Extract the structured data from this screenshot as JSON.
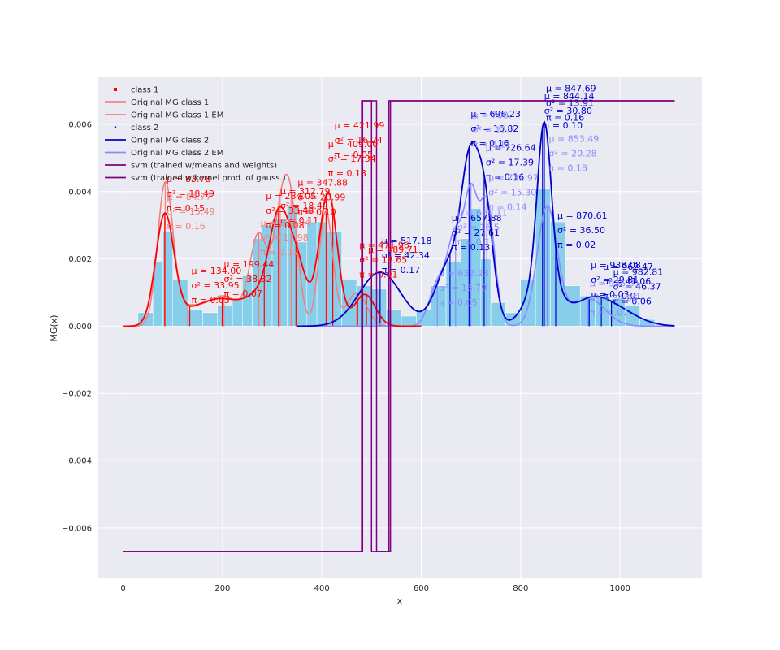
{
  "chart_data": {
    "type": "line",
    "xlabel": "x",
    "ylabel": "MG(x)",
    "xlim": [
      -50,
      1165
    ],
    "ylim": [
      -0.0075,
      0.0074
    ],
    "x_ticks": [
      0,
      200,
      400,
      600,
      800,
      1000
    ],
    "y_ticks": [
      -0.006,
      -0.004,
      -0.002,
      0.0,
      0.002,
      0.004,
      0.006
    ],
    "x_tick_labels": [
      "0",
      "200",
      "400",
      "600",
      "800",
      "1000"
    ],
    "y_tick_labels": [
      "−0.006",
      "−0.004",
      "−0.002",
      "0.000",
      "0.002",
      "0.004",
      "0.006"
    ],
    "grid": true,
    "legend_position": "top-left",
    "legend": [
      {
        "label": "class 1",
        "kind": "marker",
        "color": "#ff0000"
      },
      {
        "label": "Original MG class 1",
        "kind": "line",
        "color": "#ff0000"
      },
      {
        "label": "Original MG class 1 EM",
        "kind": "line",
        "color": "#f08080"
      },
      {
        "label": "class 2",
        "kind": "marker",
        "color": "#0000ff"
      },
      {
        "label": "Original MG class 2",
        "kind": "line",
        "color": "#0000cd"
      },
      {
        "label": "Original MG class 2 EM",
        "kind": "line",
        "color": "#8a8aff"
      },
      {
        "label": "svm (trained w/means and weights)",
        "kind": "line",
        "color": "#800080"
      },
      {
        "label": "svm (trained w/kernel prod. of gauss.)",
        "kind": "line",
        "color": "#800080"
      }
    ],
    "colors": {
      "class1": "#ff0000",
      "class1_em": "#f08080",
      "class2": "#0000cd",
      "class2_em": "#8a8aff",
      "svm": "#800080",
      "hist": "#87ceeb",
      "plot_bg": "#eaeaf2"
    },
    "histogram": {
      "bin_edges": [
        0,
        30,
        60,
        80,
        100,
        130,
        160,
        190,
        220,
        240,
        260,
        280,
        300,
        330,
        350,
        370,
        390,
        410,
        440,
        470,
        500,
        530,
        560,
        590,
        620,
        650,
        680,
        700,
        720,
        740,
        770,
        800,
        830,
        860,
        890,
        920,
        950,
        980,
        1010,
        1040,
        1070,
        1110
      ],
      "heights": [
        0.0,
        0.0004,
        0.0019,
        0.0028,
        0.0014,
        0.0005,
        0.0004,
        0.0006,
        0.0008,
        0.0015,
        0.0026,
        0.003,
        0.0032,
        0.0036,
        0.0025,
        0.0031,
        0.0031,
        0.0028,
        0.0014,
        0.0012,
        0.0011,
        0.0005,
        0.0003,
        0.0005,
        0.0012,
        0.0019,
        0.0026,
        0.0035,
        0.002,
        0.0007,
        0.0004,
        0.0014,
        0.0041,
        0.0031,
        0.0012,
        0.0009,
        0.0009,
        0.0008,
        0.0006,
        0.0002,
        0.0
      ]
    },
    "class1_components": [
      {
        "mu": 83.78,
        "sigma2": 18.49,
        "pi": 0.15
      },
      {
        "mu": 134.0,
        "sigma2": 33.95,
        "pi": 0.03
      },
      {
        "mu": 199.44,
        "sigma2": 38.32,
        "pi": 0.07
      },
      {
        "mu": 284.05,
        "sigma2": 33.48,
        "pi": 0.08
      },
      {
        "mu": 312.79,
        "sigma2": 18.49,
        "pi": 0.11
      },
      {
        "mu": 347.88,
        "sigma2": 20.99,
        "pi": 0.1
      },
      {
        "mu": 409.0,
        "sigma2": 17.34,
        "pi": 0.13
      },
      {
        "mu": 421.99,
        "sigma2": 16.24,
        "pi": 0.05
      },
      {
        "mu": 471.96,
        "sigma2": 18.65,
        "pi": 0.01
      },
      {
        "mu": 489.71,
        "sigma2": 20.0,
        "pi": 0.04
      }
    ],
    "class2_components": [
      {
        "mu": 517.18,
        "sigma2": 42.34,
        "pi": 0.17
      },
      {
        "mu": 657.88,
        "sigma2": 27.61,
        "pi": 0.13
      },
      {
        "mu": 696.23,
        "sigma2": 16.82,
        "pi": 0.16
      },
      {
        "mu": 726.64,
        "sigma2": 17.39,
        "pi": 0.16
      },
      {
        "mu": 847.69,
        "sigma2": 13.91,
        "pi": 0.16
      },
      {
        "mu": 844.14,
        "sigma2": 30.8,
        "pi": 0.1
      },
      {
        "mu": 870.61,
        "sigma2": 36.5,
        "pi": 0.02
      },
      {
        "mu": 938.08,
        "sigma2": 29.81,
        "pi": 0.03
      },
      {
        "mu": 962.47,
        "sigma2": 41.06,
        "pi": 0.01
      },
      {
        "mu": 982.81,
        "sigma2": 46.37,
        "pi": 0.06
      }
    ],
    "class1_em_components": [
      {
        "mu": 84.77,
        "sigma2": 15.49,
        "pi": 0.16
      },
      {
        "mu": 130.0,
        "sigma2": 30.0,
        "pi": 0.04
      },
      {
        "mu": 203.0,
        "sigma2": 32.0,
        "pi": 0.07
      },
      {
        "mu": 273.04,
        "sigma2": 17.98,
        "pi": 0.12
      },
      {
        "mu": 316.0,
        "sigma2": 15.0,
        "pi": 0.1
      },
      {
        "mu": 338.0,
        "sigma2": 15.0,
        "pi": 0.12
      },
      {
        "mu": 408.0,
        "sigma2": 14.0,
        "pi": 0.12
      },
      {
        "mu": 470.0,
        "sigma2": 20.0,
        "pi": 0.05
      }
    ],
    "class2_em_components": [
      {
        "mu": 632.23,
        "sigma2": 16.79,
        "pi": 0.05
      },
      {
        "mu": 669.11,
        "sigma2": 16.5,
        "pi": 0.11
      },
      {
        "mu": 700.0,
        "sigma2": 13.0,
        "pi": 0.11
      },
      {
        "mu": 731.97,
        "sigma2": 15.3,
        "pi": 0.14
      },
      {
        "mu": 853.49,
        "sigma2": 20.28,
        "pi": 0.18
      },
      {
        "mu": 935.91,
        "sigma2": 34.06,
        "pi": 0.07
      }
    ],
    "annotations": [
      {
        "x": 83.78,
        "y": 0.00428,
        "lines": [
          "μ = 83.78",
          "σ² = 18.49",
          "π = 0.15"
        ],
        "series": "class1"
      },
      {
        "x": 134.0,
        "y": 0.00155,
        "lines": [
          "μ = 134.00",
          "σ² = 33.95",
          "π = 0.03"
        ],
        "series": "class1"
      },
      {
        "x": 199.44,
        "y": 0.00175,
        "lines": [
          "μ = 199.44",
          "σ² = 38.32",
          "π = 0.07"
        ],
        "series": "class1"
      },
      {
        "x": 284.05,
        "y": 0.00378,
        "lines": [
          "μ = 284.05",
          "σ² = 33.48",
          "π = 0.08"
        ],
        "series": "class1"
      },
      {
        "x": 312.79,
        "y": 0.00392,
        "lines": [
          "μ = 312.79",
          "σ² = 18.49",
          "π = 0.11"
        ],
        "series": "class1"
      },
      {
        "x": 347.88,
        "y": 0.00418,
        "lines": [
          "μ = 347.88",
          "σ² = 20.99",
          "π = 0.10"
        ],
        "series": "class1"
      },
      {
        "x": 409.0,
        "y": 0.00532,
        "lines": [
          "μ = 409.00",
          "σ² = 17.34",
          "π = 0.13"
        ],
        "series": "class1"
      },
      {
        "x": 421.99,
        "y": 0.00588,
        "lines": [
          "μ = 421.99",
          "σ² = 16.24",
          "π = 0.05"
        ],
        "series": "class1"
      },
      {
        "x": 471.96,
        "y": 0.00232,
        "lines": [
          "μ = 471.96",
          "σ² = 18.65",
          "π = 0.01"
        ],
        "series": "class1"
      },
      {
        "x": 489.71,
        "y": 0.00218,
        "lines": [
          "μ = 489.71"
        ],
        "series": "class1"
      },
      {
        "x": 517.18,
        "y": 0.00245,
        "lines": [
          "μ = 517.18",
          "σ² = 42.34",
          "π = 0.17"
        ],
        "series": "class2"
      },
      {
        "x": 657.88,
        "y": 0.00312,
        "lines": [
          "μ = 657.88",
          "σ² = 27.61",
          "π = 0.13"
        ],
        "series": "class2"
      },
      {
        "x": 696.23,
        "y": 0.00622,
        "lines": [
          "μ = 696.23",
          "σ² = 16.82",
          "π = 0.16"
        ],
        "series": "class2"
      },
      {
        "x": 726.64,
        "y": 0.00522,
        "lines": [
          "μ = 726.64",
          "σ² = 17.39",
          "π = 0.16"
        ],
        "series": "class2"
      },
      {
        "x": 847.69,
        "y": 0.00698,
        "lines": [
          "μ = 847.69",
          "σ² = 13.91",
          "π = 0.16"
        ],
        "series": "class2"
      },
      {
        "x": 844.14,
        "y": 0.00675,
        "lines": [
          "μ = 844.14",
          "σ² = 30.80",
          "π = 0.10"
        ],
        "series": "class2"
      },
      {
        "x": 870.61,
        "y": 0.0032,
        "lines": [
          "μ = 870.61",
          "σ² = 36.50",
          "π = 0.02"
        ],
        "series": "class2"
      },
      {
        "x": 938.08,
        "y": 0.00172,
        "lines": [
          "μ = 938.08",
          "σ² = 29.81",
          "π = 0.03"
        ],
        "series": "class2"
      },
      {
        "x": 962.47,
        "y": 0.00168,
        "lines": [
          "μ = 962.47",
          "σ² = 41.06",
          "π = 0.01"
        ],
        "series": "class2"
      },
      {
        "x": 982.81,
        "y": 0.00152,
        "lines": [
          "μ = 982.81",
          "σ² = 46.37",
          "π = 0.06"
        ],
        "series": "class2"
      },
      {
        "x": 84.77,
        "y": 0.00375,
        "lines": [
          "μ = 84.77",
          "σ² = 15.49",
          "π = 0.16"
        ],
        "series": "class1_em"
      },
      {
        "x": 273.04,
        "y": 0.00298,
        "lines": [
          "μ = 273.04",
          "σ² = 17.98",
          "π = 0.12"
        ],
        "series": "class1_em"
      },
      {
        "x": 632.23,
        "y": 0.00148,
        "lines": [
          "μ = 632.23",
          "σ² = 16.79",
          "π = 0.05"
        ],
        "series": "class2_em"
      },
      {
        "x": 669.11,
        "y": 0.00328,
        "lines": [
          "μ = 669.11",
          "σ² = 16.5",
          "π = 0.11"
        ],
        "series": "class2_em"
      },
      {
        "x": 700.0,
        "y": 0.00618,
        "lines": [
          "μ = 700.",
          "σ² = 13.",
          "π = 0.11"
        ],
        "series": "class2_em"
      },
      {
        "x": 731.97,
        "y": 0.00432,
        "lines": [
          "μ = 731.97",
          "σ² = 15.30",
          "π = 0.14"
        ],
        "series": "class2_em"
      },
      {
        "x": 853.49,
        "y": 0.00548,
        "lines": [
          "μ = 853.49",
          "σ² = 20.28",
          "π = 0.18"
        ],
        "series": "class2_em"
      },
      {
        "x": 935.91,
        "y": 0.00118,
        "lines": [
          "μ = 935.91",
          "σ² = 34.06",
          "π = 0.07"
        ],
        "series": "class2_em"
      }
    ],
    "svm": {
      "low": -0.0067,
      "high": 0.0067,
      "x_start": 0,
      "x_end": 1110,
      "means_weights_steps": [
        [
          0,
          -0.0067
        ],
        [
          480,
          -0.0067
        ],
        [
          480,
          0.0067
        ],
        [
          510,
          0.0067
        ],
        [
          510,
          -0.0067
        ],
        [
          538,
          -0.0067
        ],
        [
          538,
          0.0067
        ],
        [
          1110,
          0.0067
        ]
      ],
      "kernel_steps": [
        [
          0,
          -0.0067
        ],
        [
          482,
          -0.0067
        ],
        [
          482,
          0.0067
        ],
        [
          500,
          0.0067
        ],
        [
          500,
          -0.0067
        ],
        [
          535,
          -0.0067
        ],
        [
          535,
          0.0067
        ],
        [
          1110,
          0.0067
        ]
      ]
    }
  }
}
